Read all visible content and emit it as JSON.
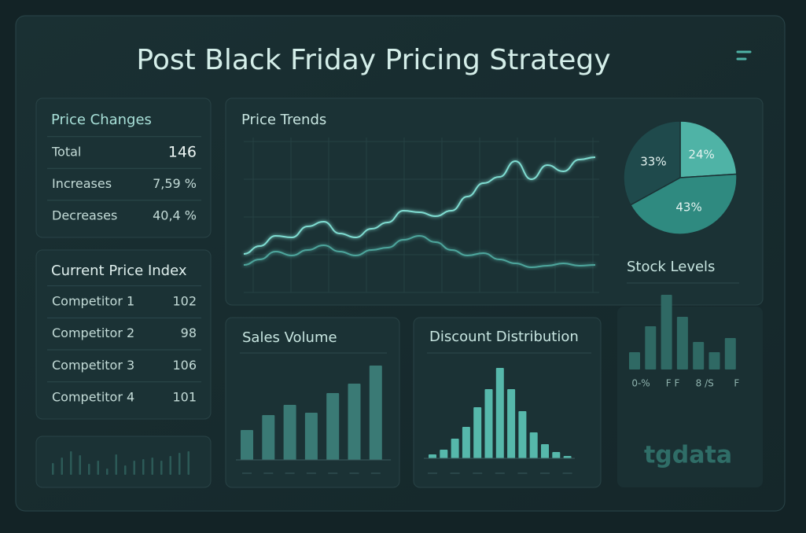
{
  "title": "Post Black Friday Pricing Strategy",
  "price_changes": {
    "title": "Price Changes",
    "rows": [
      [
        "Total",
        146
      ],
      [
        "Increases",
        "7,59 %"
      ],
      [
        "Decreases",
        "40,4 %"
      ]
    ]
  },
  "price_index": {
    "title": "Current Price Index",
    "rows": [
      [
        "Competitor 1",
        102
      ],
      [
        "Competitor 2",
        98
      ],
      [
        "Competitor 3",
        106
      ],
      [
        "Competitor 4",
        101
      ]
    ]
  },
  "chart_data": [
    {
      "type": "line",
      "title": "Price Trends",
      "series": [
        {
          "color": "#7fdcd1",
          "values": [
            26,
            31,
            37.5,
            36.5,
            43.5,
            46.5,
            39,
            36.5,
            42,
            46,
            53.5,
            52.5,
            50,
            53.5,
            62.5,
            71,
            75,
            85,
            73.5,
            82.5,
            78.5,
            86,
            87.5
          ]
        },
        {
          "color": "#4ea59c",
          "values": [
            19,
            22.5,
            27.5,
            25,
            28.5,
            31.5,
            27.5,
            25,
            28.5,
            30,
            35,
            37.5,
            33.5,
            28.5,
            25,
            26.5,
            22.5,
            20,
            17.5,
            18.5,
            20,
            18.5,
            19
          ]
        }
      ]
    },
    {
      "type": "pie",
      "values": [
        24,
        43,
        33
      ],
      "value_labels": [
        "24%",
        "43%",
        "33%"
      ],
      "colors": [
        "#4fb3a6",
        "#2f8a80",
        "#1f4a4c"
      ]
    },
    {
      "type": "bar",
      "title": "Stock Levels",
      "color": "#2f6964",
      "categories": [
        "0-%",
        null,
        "F F",
        null,
        "8 /S",
        null,
        "F"
      ],
      "values": [
        22,
        55,
        95,
        67,
        35,
        22,
        40
      ]
    },
    {
      "type": "bar",
      "title": "Sales Volume",
      "color": "#3a7a75",
      "values": [
        38,
        57,
        70,
        60,
        85,
        97,
        120
      ]
    },
    {
      "type": "bar",
      "title": "Discount Distribution",
      "color": "#56b8ab",
      "values": [
        5,
        11,
        25,
        40,
        65,
        88,
        115,
        88,
        60,
        33,
        18,
        8,
        3
      ]
    },
    {
      "type": "bar",
      "color": "#2c5a57",
      "values": [
        15,
        22,
        30,
        25,
        14,
        18,
        8,
        26,
        12,
        18,
        20,
        22,
        18,
        24,
        28,
        30
      ]
    }
  ],
  "brand": "tgdata"
}
